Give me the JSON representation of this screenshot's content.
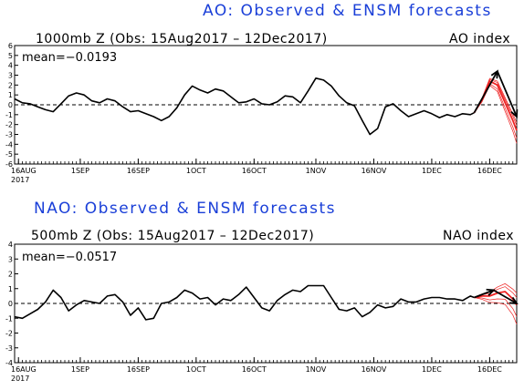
{
  "chart_data": [
    {
      "type": "line",
      "title": "AO: Observed & ENSM forecasts",
      "subtitle": "1000mb Z (Obs: 15Aug2017 – 12Dec2017)",
      "index_label": "AO index",
      "mean_label": "mean=−0.0193",
      "ylim": [
        -6,
        6
      ],
      "yticks": [
        "6",
        "5",
        "4",
        "3",
        "2",
        "1",
        "0",
        "-1",
        "-2",
        "-3",
        "-4",
        "-5",
        "-6"
      ],
      "xlim": [
        0,
        130
      ],
      "xticks": [
        {
          "d": 1,
          "label": "16AUG",
          "year": "2017"
        },
        {
          "d": 17,
          "label": "1SEP"
        },
        {
          "d": 32,
          "label": "16SEP"
        },
        {
          "d": 47,
          "label": "1OCT"
        },
        {
          "d": 62,
          "label": "16OCT"
        },
        {
          "d": 78,
          "label": "1NOV"
        },
        {
          "d": 93,
          "label": "16NOV"
        },
        {
          "d": 108,
          "label": "1DEC"
        },
        {
          "d": 123,
          "label": "16DEC"
        }
      ],
      "series": [
        {
          "color": "#000000",
          "x": [
            0,
            2,
            4,
            6,
            8,
            10,
            12,
            14,
            16,
            18,
            20,
            22,
            24,
            26,
            28,
            30,
            32,
            34,
            36,
            38,
            40,
            42,
            44,
            46,
            48,
            50,
            52,
            54,
            56,
            58,
            60,
            62,
            64,
            66,
            68,
            70,
            72,
            74,
            76,
            78,
            80,
            82,
            84,
            86,
            88,
            90,
            92,
            94,
            96,
            98,
            100,
            102,
            104,
            106,
            108,
            110,
            112,
            114,
            116,
            118,
            119
          ],
          "y": [
            0.6,
            0.2,
            0.1,
            -0.2,
            -0.5,
            -0.7,
            0.1,
            0.9,
            1.2,
            1.0,
            0.4,
            0.2,
            0.6,
            0.4,
            -0.2,
            -0.7,
            -0.6,
            -0.9,
            -1.2,
            -1.6,
            -1.2,
            -0.3,
            1.0,
            1.9,
            1.5,
            1.2,
            1.6,
            1.4,
            0.8,
            0.2,
            0.3,
            0.6,
            0.1,
            0.0,
            0.3,
            0.9,
            0.8,
            0.2,
            1.4,
            2.7,
            2.5,
            1.9,
            0.9,
            0.2,
            -0.1,
            -1.6,
            -3.0,
            -2.4,
            -0.2,
            0.1,
            -0.6,
            -1.2,
            -0.9,
            -0.6,
            -0.9,
            -1.3,
            -1.0,
            -1.2,
            -0.9,
            -1.0,
            -0.8
          ]
        },
        {
          "color": "#ee2222",
          "x": [
            119,
            121,
            123,
            125,
            127,
            129,
            130
          ],
          "y": [
            -0.8,
            0.5,
            2.4,
            2.0,
            0.2,
            -1.6,
            -2.6
          ]
        }
      ],
      "arrows": [
        {
          "from": [
            119,
            -0.8
          ],
          "to": [
            125,
            3.4
          ]
        },
        {
          "from": [
            125,
            3.4
          ],
          "to": [
            130,
            -1.2
          ]
        }
      ]
    },
    {
      "type": "line",
      "title": "NAO: Observed & ENSM forecasts",
      "subtitle": "500mb Z (Obs: 15Aug2017 – 12Dec2017)",
      "index_label": "NAO index",
      "mean_label": "mean=−0.0517",
      "ylim": [
        -4,
        4
      ],
      "yticks": [
        "4",
        "3",
        "2",
        "1",
        "0",
        "-1",
        "-2",
        "-3",
        "-4"
      ],
      "xlim": [
        0,
        130
      ],
      "xticks": [
        {
          "d": 1,
          "label": "16AUG",
          "year": "2017"
        },
        {
          "d": 17,
          "label": "1SEP"
        },
        {
          "d": 32,
          "label": "16SEP"
        },
        {
          "d": 47,
          "label": "1OCT"
        },
        {
          "d": 62,
          "label": "16OCT"
        },
        {
          "d": 78,
          "label": "1NOV"
        },
        {
          "d": 93,
          "label": "16NOV"
        },
        {
          "d": 108,
          "label": "1DEC"
        },
        {
          "d": 123,
          "label": "16DEC"
        }
      ],
      "series": [
        {
          "color": "#000000",
          "x": [
            0,
            2,
            4,
            6,
            8,
            10,
            12,
            14,
            16,
            18,
            20,
            22,
            24,
            26,
            28,
            30,
            32,
            34,
            36,
            38,
            40,
            42,
            44,
            46,
            48,
            50,
            52,
            54,
            56,
            58,
            60,
            62,
            64,
            66,
            68,
            70,
            72,
            74,
            76,
            78,
            80,
            82,
            84,
            86,
            88,
            90,
            92,
            94,
            96,
            98,
            100,
            102,
            104,
            106,
            108,
            110,
            112,
            114,
            116,
            118,
            119
          ],
          "y": [
            -0.9,
            -1.0,
            -0.7,
            -0.4,
            0.1,
            0.9,
            0.4,
            -0.5,
            -0.1,
            0.2,
            0.1,
            0.0,
            0.5,
            0.6,
            0.1,
            -0.8,
            -0.3,
            -1.1,
            -1.0,
            0.0,
            0.1,
            0.4,
            0.9,
            0.7,
            0.3,
            0.4,
            -0.1,
            0.3,
            0.2,
            0.6,
            1.1,
            0.4,
            -0.3,
            -0.5,
            0.2,
            0.6,
            0.9,
            0.8,
            1.2,
            1.2,
            1.2,
            0.4,
            -0.4,
            -0.5,
            -0.3,
            -0.9,
            -0.6,
            -0.1,
            -0.3,
            -0.2,
            0.3,
            0.1,
            0.1,
            0.3,
            0.4,
            0.4,
            0.3,
            0.3,
            0.2,
            0.5,
            0.4
          ]
        },
        {
          "color": "#ee2222",
          "x": [
            119,
            121,
            123,
            125,
            127,
            129,
            130
          ],
          "y": [
            0.4,
            0.5,
            0.5,
            0.7,
            0.8,
            0.3,
            -0.1
          ]
        }
      ],
      "arrows": [
        {
          "from": [
            119,
            0.4
          ],
          "to": [
            124,
            0.9
          ]
        },
        {
          "from": [
            124,
            0.9
          ],
          "to": [
            130,
            0.0
          ]
        }
      ]
    }
  ]
}
